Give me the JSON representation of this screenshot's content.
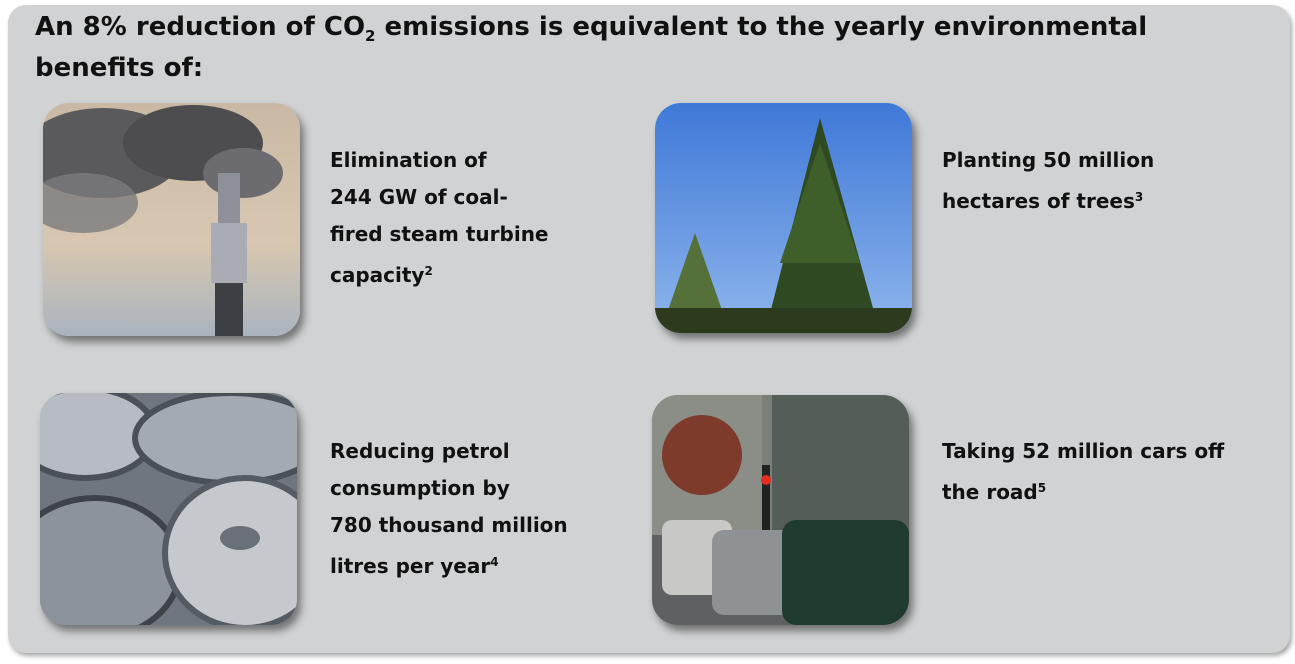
{
  "header": {
    "title": {
      "before": "An 8% reduction of CO",
      "sub": "2",
      "after": " emissions is equivalent to the yearly environmental benefits of:"
    }
  },
  "items": [
    {
      "lines": [
        "Elimination of",
        "244 GW of coal-",
        "fired steam turbine",
        "capacity"
      ],
      "note": "2"
    },
    {
      "lines": [
        "Planting 50 million",
        "hectares of trees"
      ],
      "note": "3"
    },
    {
      "lines": [
        "Reducing petrol",
        "consumption by",
        "780 thousand million",
        "litres per year"
      ],
      "note": "4"
    },
    {
      "lines": [
        "Taking 52 million cars off",
        "the road"
      ],
      "note": "5"
    }
  ]
}
